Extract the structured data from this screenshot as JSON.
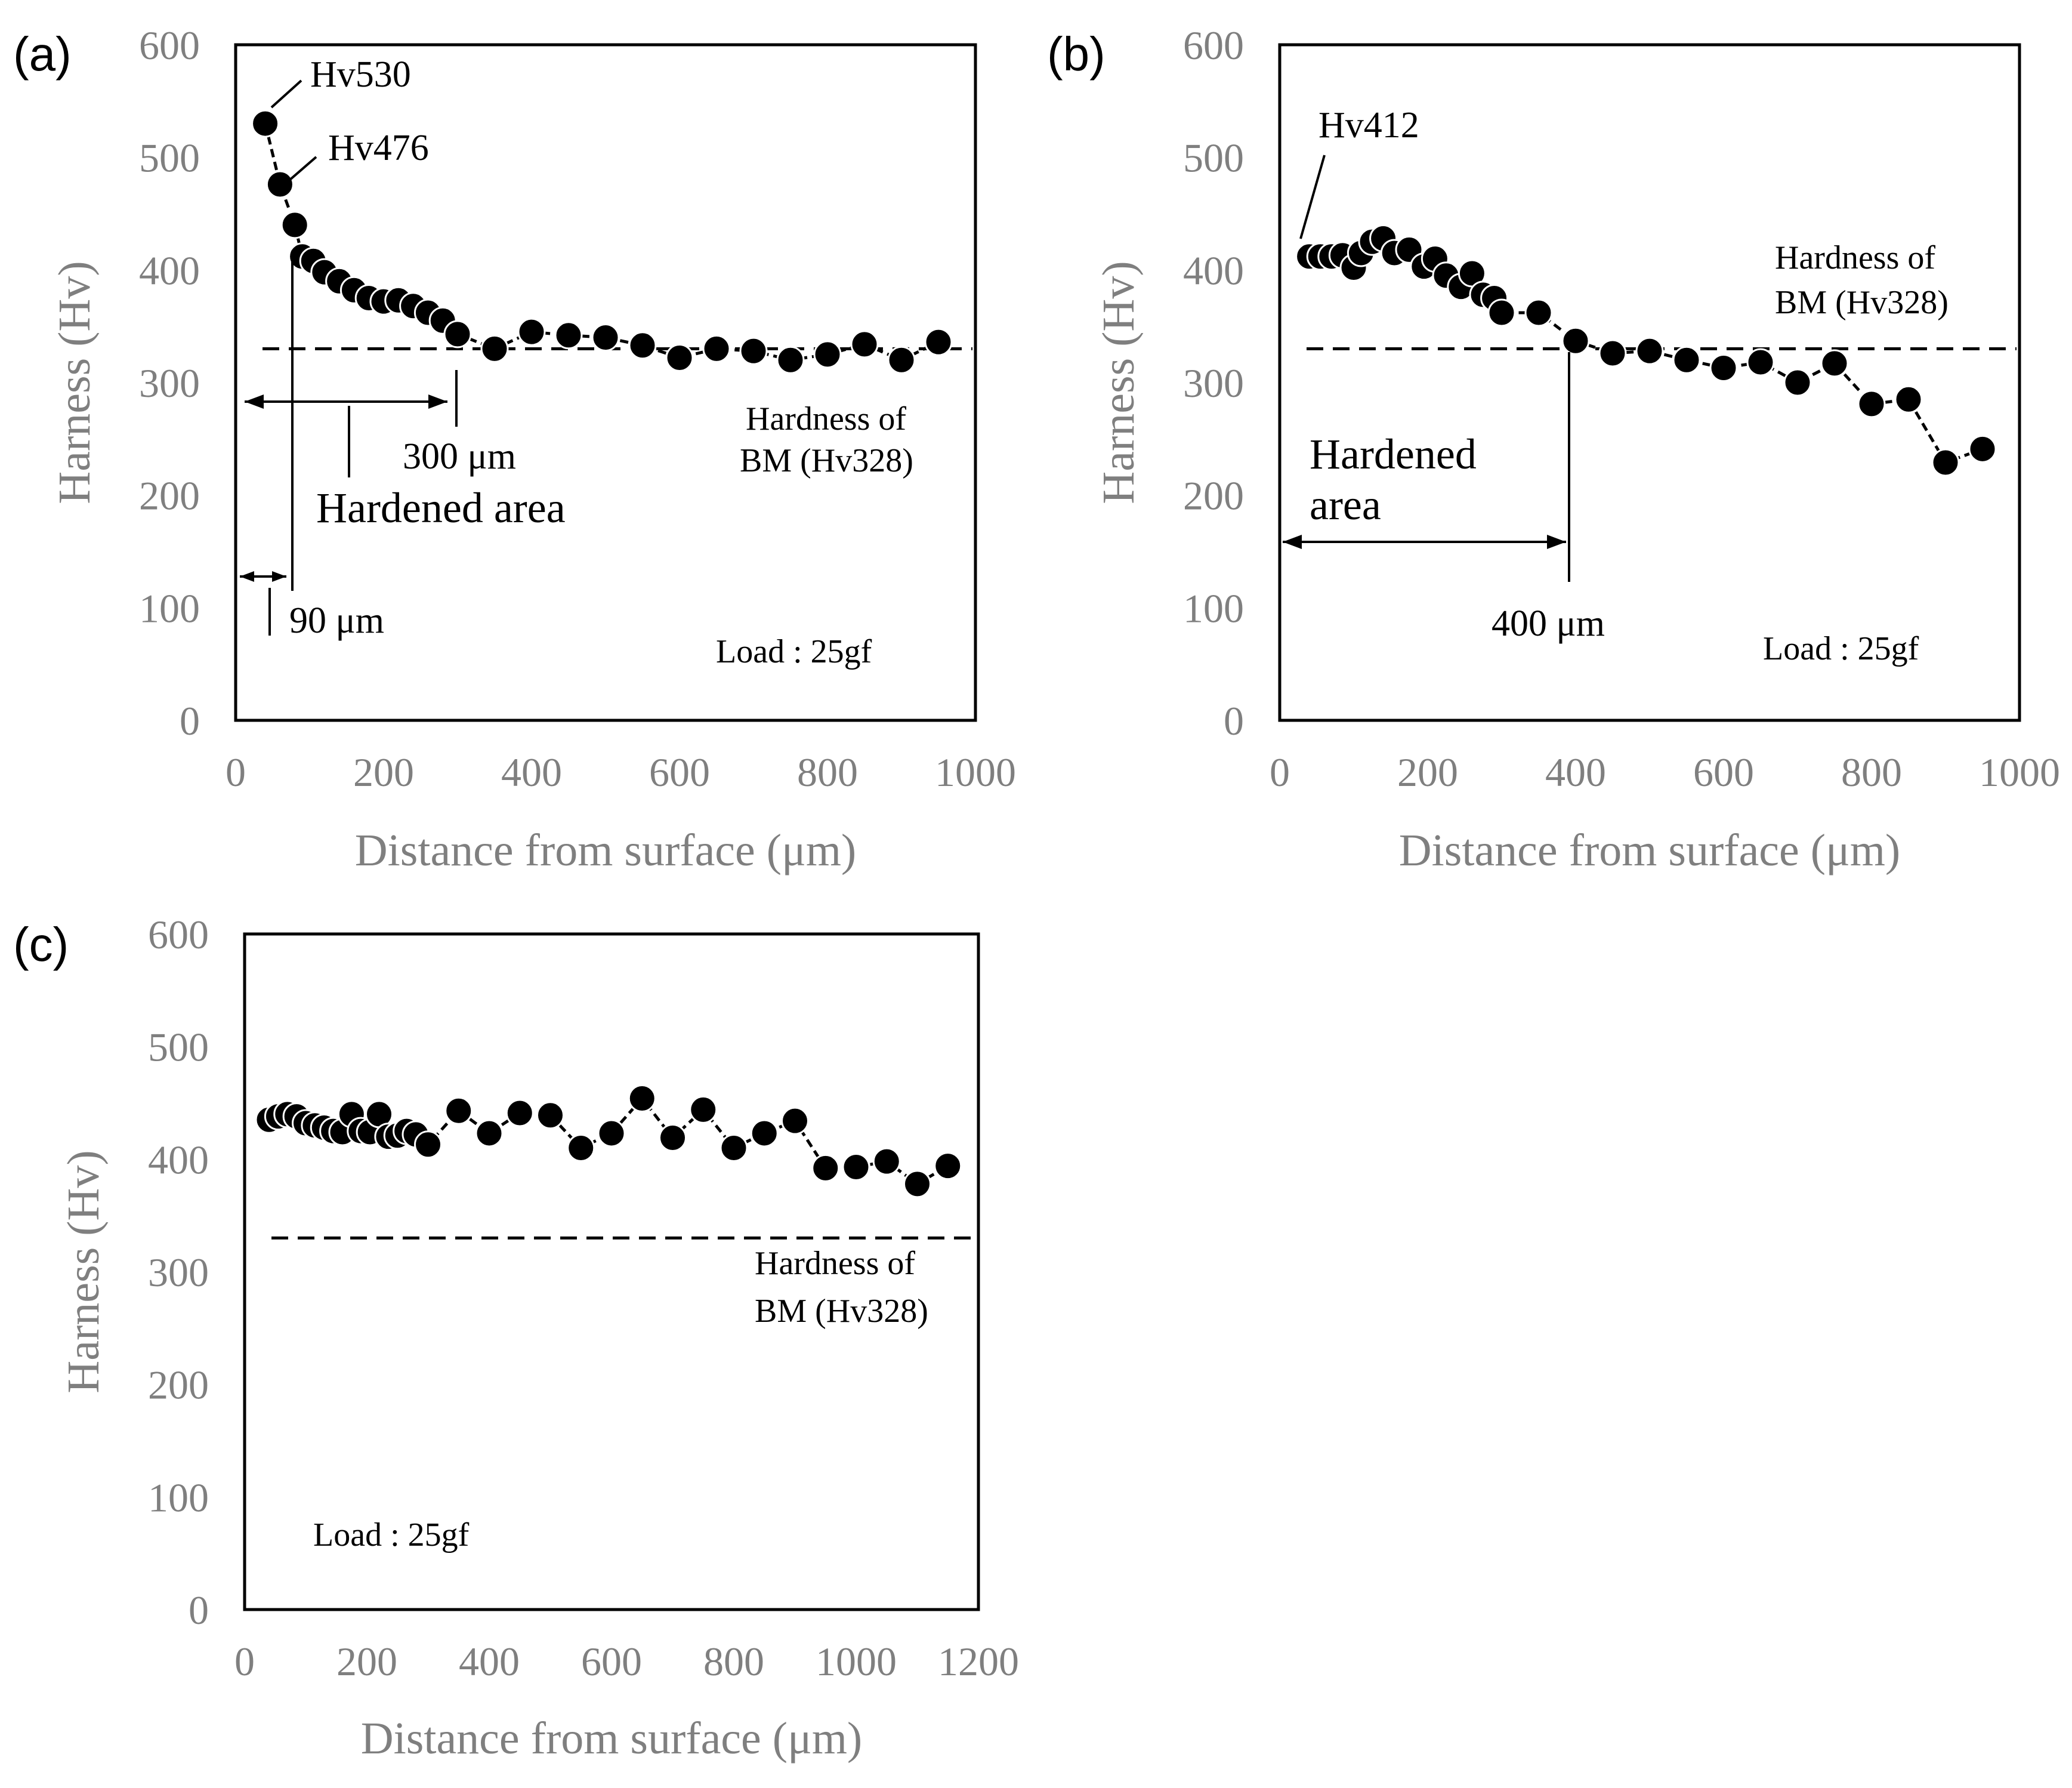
{
  "colors": {
    "marker": "#000000",
    "axis_text": "#7f7f7f",
    "line": "#000000",
    "background": "#ffffff"
  },
  "chart_data": [
    {
      "panel_label": "(a)",
      "type": "scatter",
      "title": "",
      "xlabel": "Distance from surface (μm)",
      "ylabel": "Harness (Hv)",
      "xlim": [
        0,
        1000
      ],
      "ylim": [
        0,
        600
      ],
      "xticks": [
        "0",
        "200",
        "400",
        "600",
        "800",
        "1000"
      ],
      "yticks": [
        "0",
        "100",
        "200",
        "300",
        "400",
        "500",
        "600"
      ],
      "reference_line": {
        "y": 330,
        "label_lines": [
          "Hardness of",
          "BM (Hv328)"
        ]
      },
      "series": [
        {
          "name": "Hardness",
          "x": [
            40,
            60,
            80,
            90,
            105,
            120,
            140,
            160,
            180,
            200,
            220,
            240,
            260,
            280,
            300,
            350,
            400,
            450,
            500,
            550,
            600,
            650,
            700,
            750,
            800,
            850,
            900,
            950
          ],
          "y": [
            530,
            476,
            440,
            412,
            408,
            398,
            390,
            382,
            375,
            372,
            373,
            368,
            362,
            355,
            343,
            330,
            345,
            342,
            340,
            333,
            322,
            330,
            328,
            320,
            325,
            334,
            320,
            336
          ]
        }
      ],
      "annotations": {
        "peak1": "Hv530",
        "peak2": "Hv476",
        "dist1": "300 μm",
        "area": "Hardened  area",
        "dist2": "90 μm",
        "load": "Load : 25gf"
      }
    },
    {
      "panel_label": "(b)",
      "type": "scatter",
      "title": "",
      "xlabel": "Distance from surface (μm)",
      "ylabel": "Harness (Hv)",
      "xlim": [
        0,
        1000
      ],
      "ylim": [
        0,
        600
      ],
      "xticks": [
        "0",
        "200",
        "400",
        "600",
        "800",
        "1000"
      ],
      "yticks": [
        "0",
        "100",
        "200",
        "300",
        "400",
        "500",
        "600"
      ],
      "reference_line": {
        "y": 330,
        "label_lines": [
          "Hardness of",
          "BM (Hv328)"
        ]
      },
      "series": [
        {
          "name": "Hardness",
          "x": [
            40,
            55,
            70,
            85,
            100,
            110,
            125,
            140,
            155,
            175,
            195,
            210,
            225,
            245,
            260,
            275,
            290,
            300,
            350,
            400,
            450,
            500,
            550,
            600,
            650,
            700,
            750,
            800,
            850,
            900,
            950
          ],
          "y": [
            412,
            412,
            412,
            413,
            402,
            415,
            425,
            428,
            415,
            418,
            403,
            410,
            395,
            385,
            397,
            378,
            375,
            362,
            362,
            337,
            326,
            328,
            320,
            313,
            318,
            300,
            317,
            281,
            285,
            229,
            241
          ]
        }
      ],
      "annotations": {
        "peak1": "Hv412",
        "area_line1": "Hardened",
        "area_line2": "area",
        "dist1": "400 μm",
        "load": "Load : 25gf"
      }
    },
    {
      "panel_label": "(c)",
      "type": "scatter",
      "title": "",
      "xlabel": "Distance from surface (μm)",
      "ylabel": "Harness (Hv)",
      "xlim": [
        0,
        1200
      ],
      "ylim": [
        0,
        600
      ],
      "xticks": [
        "0",
        "200",
        "400",
        "600",
        "800",
        "1000",
        "1200"
      ],
      "yticks": [
        "0",
        "100",
        "200",
        "300",
        "400",
        "500",
        "600"
      ],
      "reference_line": {
        "y": 330,
        "label_lines": [
          "Hardness of",
          "BM (Hv328)"
        ]
      },
      "series": [
        {
          "name": "Hardness",
          "x": [
            40,
            55,
            70,
            85,
            100,
            115,
            130,
            145,
            160,
            175,
            190,
            205,
            220,
            235,
            250,
            265,
            280,
            300,
            350,
            400,
            450,
            500,
            550,
            600,
            650,
            700,
            750,
            800,
            850,
            900,
            950,
            1000,
            1050,
            1100,
            1150
          ],
          "y": [
            435,
            438,
            440,
            438,
            432,
            430,
            428,
            425,
            424,
            440,
            425,
            424,
            440,
            420,
            421,
            425,
            422,
            413,
            443,
            423,
            441,
            439,
            410,
            423,
            454,
            419,
            444,
            410,
            423,
            434,
            392,
            393,
            398,
            378,
            394
          ]
        }
      ],
      "annotations": {
        "load": "Load : 25gf"
      }
    }
  ]
}
